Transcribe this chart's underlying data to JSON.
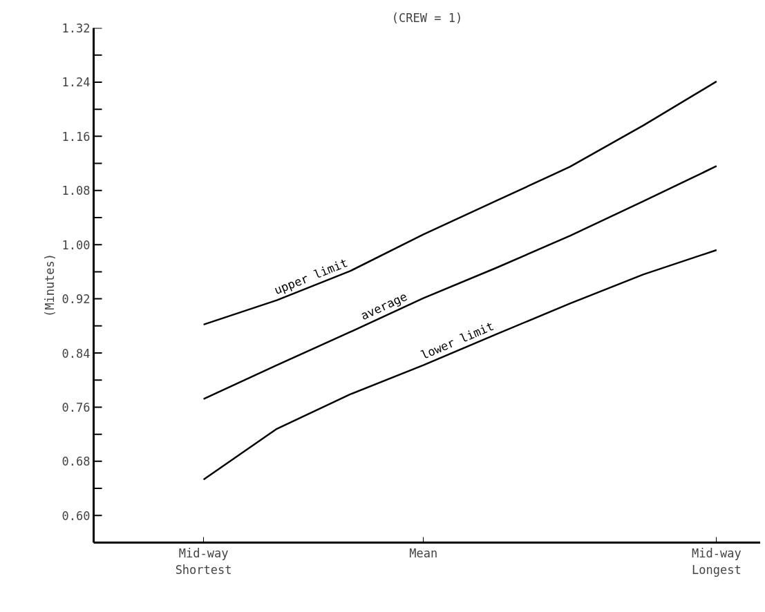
{
  "chart_data": {
    "type": "line",
    "title": "(CREW = 1)",
    "ylabel": "(Minutes)",
    "categories": [
      "Mid-way\nShortest",
      null,
      null,
      "Mean",
      null,
      null,
      null,
      "Mid-way\nLongest"
    ],
    "ylim": [
      0.56,
      1.32
    ],
    "yticks": [
      {
        "value": 0.6,
        "label": "0.60"
      },
      {
        "value": 0.68,
        "label": "0.68"
      },
      {
        "value": 0.76,
        "label": "0.76"
      },
      {
        "value": 0.84,
        "label": "0.84"
      },
      {
        "value": 0.92,
        "label": "0.92"
      },
      {
        "value": 1.0,
        "label": "1.00"
      },
      {
        "value": 1.08,
        "label": "1.08"
      },
      {
        "value": 1.16,
        "label": "1.16"
      },
      {
        "value": 1.24,
        "label": "1.24"
      },
      {
        "value": 1.32,
        "label": "1.32"
      }
    ],
    "marker": "none",
    "line_style": "solid",
    "series": [
      {
        "name": "upper limit",
        "color": "#000000",
        "values": [
          0.882,
          0.918,
          0.961,
          1.015,
          1.065,
          1.115,
          1.176,
          1.241
        ]
      },
      {
        "name": "average",
        "color": "#000000",
        "values": [
          0.772,
          0.822,
          0.871,
          0.921,
          0.966,
          1.013,
          1.064,
          1.116
        ]
      },
      {
        "name": "lower limit",
        "color": "#000000",
        "values": [
          0.653,
          0.728,
          0.779,
          0.822,
          0.868,
          0.913,
          0.956,
          0.992
        ]
      }
    ]
  }
}
